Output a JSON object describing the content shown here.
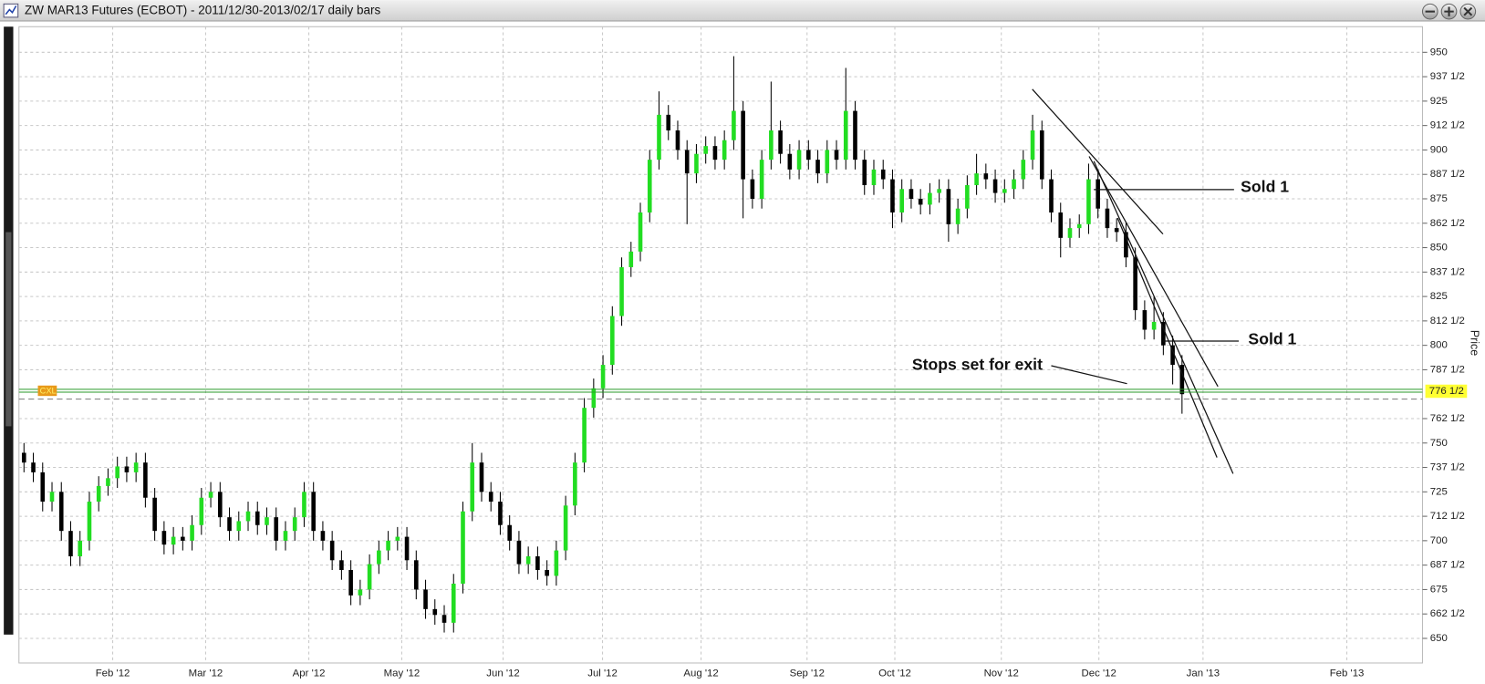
{
  "chart_data": {
    "type": "candlestick",
    "title": "ZW MAR13 Futures (ECBOT) - 2011/12/30-2013/02/17 daily bars",
    "y_label": "Price",
    "up_color": "#22dd22",
    "down_color": "#000000",
    "grid": true,
    "xlim": [
      0.92,
      301.5
    ],
    "ylim": [
      637.4,
      963.1
    ],
    "xticks": [
      {
        "value": 21,
        "label": "Feb '12"
      },
      {
        "value": 40.9,
        "label": "Mar '12"
      },
      {
        "value": 63,
        "label": "Apr '12"
      },
      {
        "value": 82.9,
        "label": "May '12"
      },
      {
        "value": 104.6,
        "label": "Jun '12"
      },
      {
        "value": 125.9,
        "label": "Jul '12"
      },
      {
        "value": 147,
        "label": "Aug '12"
      },
      {
        "value": 169.7,
        "label": "Sep '12"
      },
      {
        "value": 188.5,
        "label": "Oct '12"
      },
      {
        "value": 211.3,
        "label": "Nov '12"
      },
      {
        "value": 232.2,
        "label": "Dec '12"
      },
      {
        "value": 254.5,
        "label": "Jan '13"
      },
      {
        "value": 285.3,
        "label": "Feb '13"
      }
    ],
    "yticks": [
      650,
      {
        "value": 662.5,
        "label": "662 1/2"
      },
      675,
      {
        "value": 687.5,
        "label": "687 1/2"
      },
      700,
      {
        "value": 712.5,
        "label": "712 1/2"
      },
      725,
      {
        "value": 737.5,
        "label": "737 1/2"
      },
      750,
      {
        "value": 762.5,
        "label": "762 1/2"
      },
      {
        "value": 787.5,
        "label": "787 1/2"
      },
      800,
      {
        "value": 812.5,
        "label": "812 1/2"
      },
      825,
      {
        "value": 837.5,
        "label": "837 1/2"
      },
      850,
      {
        "value": 862.5,
        "label": "862 1/2"
      },
      875,
      {
        "value": 887.5,
        "label": "887 1/2"
      },
      900,
      {
        "value": 912.5,
        "label": "912 1/2"
      },
      925,
      {
        "value": 937.5,
        "label": "937 1/2"
      },
      950
    ],
    "last_price": {
      "value": 776.5,
      "label": "776 1/2"
    },
    "reference_line": 772.5,
    "order_tag": "CXL",
    "annotations": [
      "Sold 1",
      "Sold 1",
      "Stops set for exit"
    ],
    "x": [
      2,
      4,
      6,
      8,
      10,
      12,
      14,
      16,
      18,
      20,
      22,
      24,
      26,
      28,
      30,
      32,
      34,
      36,
      38,
      40,
      42,
      44,
      46,
      48,
      50,
      52,
      54,
      56,
      58,
      60,
      62,
      64,
      66,
      68,
      70,
      72,
      74,
      76,
      78,
      80,
      82,
      84,
      86,
      88,
      90,
      92,
      94,
      96,
      98,
      100,
      102,
      104,
      106,
      108,
      110,
      112,
      114,
      116,
      118,
      120,
      122,
      124,
      126,
      128,
      130,
      132,
      134,
      136,
      138,
      140,
      142,
      144,
      146,
      148,
      150,
      152,
      154,
      156,
      158,
      160,
      162,
      164,
      166,
      168,
      170,
      172,
      174,
      176,
      178,
      180,
      182,
      184,
      186,
      188,
      190,
      192,
      194,
      196,
      198,
      200,
      202,
      204,
      206,
      208,
      210,
      212,
      214,
      216,
      218,
      220,
      222,
      224,
      226,
      228,
      230,
      232,
      234,
      236,
      238,
      240,
      242,
      244,
      246,
      248,
      250
    ],
    "open": [
      745,
      740,
      735,
      720,
      725,
      705,
      692,
      700,
      720,
      728,
      732,
      738,
      735,
      740,
      722,
      705,
      698,
      702,
      700,
      708,
      722,
      725,
      712,
      705,
      710,
      715,
      708,
      712,
      700,
      705,
      712,
      725,
      705,
      700,
      690,
      685,
      672,
      675,
      688,
      695,
      700,
      702,
      690,
      675,
      665,
      662,
      658,
      678,
      715,
      740,
      725,
      720,
      708,
      700,
      688,
      692,
      685,
      682,
      695,
      718,
      740,
      768,
      778,
      790,
      815,
      840,
      848,
      868,
      895,
      918,
      910,
      900,
      888,
      898,
      902,
      895,
      905,
      920,
      885,
      875,
      895,
      910,
      898,
      890,
      900,
      895,
      888,
      900,
      895,
      920,
      895,
      882,
      890,
      885,
      868,
      880,
      875,
      872,
      878,
      880,
      862,
      870,
      882,
      888,
      885,
      878,
      880,
      885,
      895,
      910,
      885,
      868,
      855,
      860,
      862,
      885,
      870,
      860,
      858,
      845,
      818,
      808,
      812,
      800,
      790
    ],
    "high": [
      750,
      745,
      740,
      730,
      730,
      710,
      705,
      725,
      733,
      737,
      743,
      743,
      745,
      745,
      727,
      710,
      707,
      707,
      713,
      727,
      730,
      730,
      717,
      715,
      720,
      720,
      717,
      717,
      710,
      717,
      730,
      730,
      710,
      705,
      695,
      690,
      680,
      693,
      700,
      705,
      707,
      707,
      695,
      680,
      670,
      667,
      683,
      720,
      750,
      745,
      730,
      725,
      713,
      705,
      697,
      697,
      690,
      700,
      723,
      745,
      773,
      783,
      795,
      820,
      845,
      853,
      873,
      900,
      930,
      923,
      915,
      905,
      903,
      907,
      907,
      910,
      948,
      925,
      890,
      900,
      935,
      915,
      903,
      905,
      905,
      900,
      905,
      905,
      942,
      925,
      900,
      895,
      895,
      890,
      885,
      885,
      880,
      883,
      885,
      885,
      875,
      887,
      898,
      893,
      890,
      885,
      890,
      900,
      918,
      915,
      890,
      873,
      865,
      867,
      893,
      890,
      875,
      865,
      863,
      850,
      823,
      825,
      817,
      805,
      795
    ],
    "low": [
      735,
      730,
      715,
      715,
      700,
      687,
      687,
      695,
      715,
      723,
      727,
      730,
      730,
      717,
      700,
      693,
      693,
      695,
      695,
      703,
      717,
      707,
      700,
      700,
      705,
      703,
      703,
      695,
      695,
      700,
      707,
      700,
      695,
      685,
      680,
      667,
      667,
      670,
      683,
      690,
      695,
      685,
      670,
      660,
      657,
      653,
      653,
      673,
      710,
      720,
      715,
      703,
      695,
      683,
      683,
      680,
      677,
      677,
      690,
      713,
      735,
      763,
      773,
      785,
      810,
      835,
      843,
      863,
      890,
      905,
      895,
      862,
      883,
      893,
      890,
      890,
      900,
      865,
      870,
      870,
      890,
      893,
      885,
      885,
      890,
      883,
      883,
      890,
      890,
      890,
      877,
      877,
      880,
      860,
      863,
      870,
      867,
      867,
      873,
      853,
      857,
      865,
      877,
      880,
      873,
      873,
      875,
      880,
      890,
      880,
      863,
      845,
      850,
      855,
      857,
      865,
      855,
      853,
      840,
      813,
      803,
      803,
      795,
      780,
      765
    ],
    "close": [
      740,
      735,
      720,
      725,
      705,
      692,
      700,
      720,
      728,
      732,
      738,
      735,
      740,
      722,
      705,
      698,
      702,
      700,
      708,
      722,
      725,
      712,
      705,
      710,
      715,
      708,
      712,
      700,
      705,
      712,
      725,
      705,
      700,
      690,
      685,
      672,
      675,
      688,
      695,
      700,
      702,
      690,
      675,
      665,
      662,
      658,
      678,
      715,
      740,
      725,
      720,
      708,
      700,
      688,
      692,
      685,
      682,
      695,
      718,
      740,
      768,
      778,
      790,
      815,
      840,
      848,
      868,
      895,
      918,
      910,
      900,
      888,
      898,
      902,
      895,
      905,
      920,
      885,
      875,
      895,
      910,
      898,
      890,
      900,
      895,
      888,
      900,
      895,
      920,
      895,
      882,
      890,
      885,
      868,
      880,
      875,
      872,
      878,
      880,
      862,
      870,
      882,
      888,
      885,
      878,
      880,
      885,
      895,
      910,
      885,
      868,
      855,
      860,
      862,
      885,
      870,
      860,
      858,
      845,
      818,
      808,
      812,
      800,
      790,
      775
    ]
  }
}
